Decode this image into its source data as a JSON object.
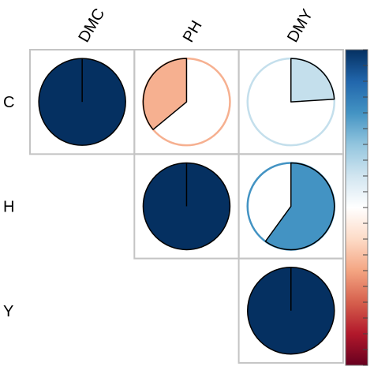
{
  "chart_data": {
    "type": "heatmap",
    "subtype": "correlation-pie",
    "column_labels": [
      "DMC",
      "PH",
      "DMY"
    ],
    "row_labels": [
      "C",
      "H",
      "Y"
    ],
    "layout": "upper-triangle",
    "cells": [
      {
        "row": 0,
        "col": 0,
        "value": 1.0
      },
      {
        "row": 0,
        "col": 1,
        "value": -0.36
      },
      {
        "row": 0,
        "col": 2,
        "value": 0.24
      },
      {
        "row": 1,
        "col": 1,
        "value": 1.0
      },
      {
        "row": 1,
        "col": 2,
        "value": 0.6
      },
      {
        "row": 2,
        "col": 2,
        "value": 1.0
      }
    ],
    "colorbar": {
      "range": [
        -1,
        1
      ],
      "colors": [
        "#67001F",
        "#B2182B",
        "#D6604D",
        "#F4A582",
        "#FDDBC7",
        "#FFFFFF",
        "#D1E5F0",
        "#92C5DE",
        "#4393C3",
        "#2166AC",
        "#053061"
      ],
      "tick_count": 21,
      "legend_position": "right"
    }
  }
}
